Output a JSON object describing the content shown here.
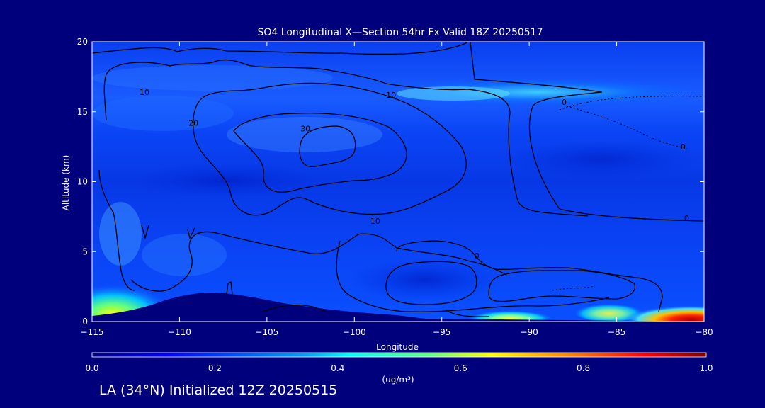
{
  "chart_data": {
    "type": "heatmap",
    "title": "SO4 Longitudinal X—Section 54hr  Fx Valid 18Z 20250517",
    "xlabel": "Longitude",
    "ylabel": "Altitude (km)",
    "xlim": [
      -115,
      -80
    ],
    "ylim": [
      0,
      20
    ],
    "x_ticks": [
      -115,
      -110,
      -105,
      -100,
      -95,
      -90,
      -85,
      -80
    ],
    "x_tick_labels": [
      "−115",
      "−110",
      "−105",
      "−100",
      "−95",
      "−90",
      "−85",
      "−80"
    ],
    "y_ticks": [
      0,
      5,
      10,
      15,
      20
    ],
    "colorbar": {
      "label": "(ug/m³)",
      "range": [
        0.0,
        1.0
      ],
      "ticks": [
        "0.0",
        "0.2",
        "0.4",
        "0.6",
        "0.8",
        "1.0"
      ]
    },
    "contour_labels": [
      {
        "value": "10",
        "lon": -112.0,
        "alt": 16.2
      },
      {
        "value": "10",
        "lon": -97.9,
        "alt": 16.0
      },
      {
        "value": "20",
        "lon": -109.2,
        "alt": 14.0
      },
      {
        "value": "30",
        "lon": -102.8,
        "alt": 13.6
      },
      {
        "value": "10",
        "lon": -98.8,
        "alt": 7.0
      },
      {
        "value": "0",
        "lon": -88.0,
        "alt": 15.5
      },
      {
        "value": "0",
        "lon": -81.2,
        "alt": 12.3
      },
      {
        "value": "0",
        "lon": -81.0,
        "alt": 7.2
      },
      {
        "value": "0",
        "lon": -93.0,
        "alt": 4.5
      }
    ],
    "concentration_features": [
      {
        "name": "upper band",
        "lon_range": [
          -100,
          -83
        ],
        "alt_range": [
          15.5,
          17
        ],
        "value": 0.3
      },
      {
        "name": "surface plume west",
        "lon_range": [
          -115,
          -111
        ],
        "alt_range": [
          0,
          2.5
        ],
        "value": 0.55
      },
      {
        "name": "surface plume central",
        "lon_range": [
          -93,
          -87
        ],
        "alt_range": [
          0,
          0.8
        ],
        "value": 0.6
      },
      {
        "name": "surface plume east",
        "lon_range": [
          -87,
          -80
        ],
        "alt_range": [
          0,
          1.0
        ],
        "value": 1.0
      }
    ]
  },
  "footer": "LA (34°N) Initialized 12Z 20250515",
  "colors": {
    "background": "#00007d",
    "colormap": [
      "#00007d",
      "#0000ff",
      "#00a0ff",
      "#00ffff",
      "#60ff80",
      "#ffff00",
      "#ff8000",
      "#ff0000",
      "#800000"
    ]
  }
}
